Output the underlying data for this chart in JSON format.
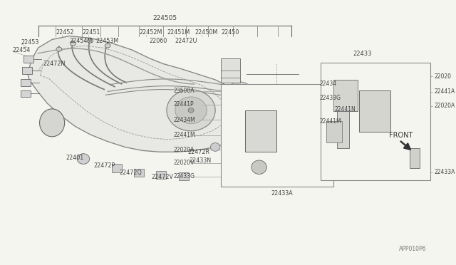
{
  "background_color": "#f5f5f0",
  "line_color": "#666666",
  "text_color": "#444444",
  "fig_width": 6.4,
  "fig_height": 3.72,
  "dpi": 100,
  "page_ref": "APP010P6",
  "top_label": "224505",
  "front_text": "FRONT"
}
